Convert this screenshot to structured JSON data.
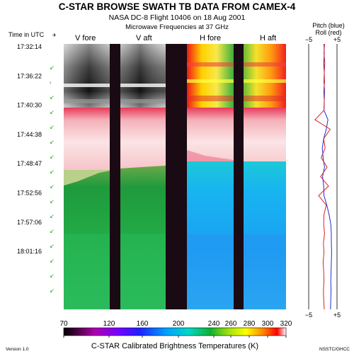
{
  "title": "C-STAR BROWSE SWATH TB DATA FROM CAMEX-4",
  "subtitle": "NASA DC-8 Flight 10406 on 18 Aug 2001",
  "subtitle2": "Microwave Frequencies at 37 GHz",
  "time_axis_label": "Time in UTC",
  "channel_labels": [
    "V fore",
    "V aft",
    "H fore",
    "H aft"
  ],
  "time_ticks": [
    "17:32:14",
    "17:36:22",
    "17:40:30",
    "17:44:38",
    "17:48:47",
    "17:52:56",
    "17:57:06",
    "18:01:16"
  ],
  "attitude_label_line1": "Pitch (blue)",
  "attitude_label_line2": "Roll (red)",
  "attitude_scale_min": "−5",
  "attitude_scale_max": "+5",
  "colorbar_label": "C-STAR Calibrated Brightness Temperatures (K)",
  "colorbar_ticks": [
    "70",
    "120",
    "160",
    "200",
    "240",
    "260",
    "280",
    "300",
    "320"
  ],
  "version": "Version 1.0",
  "credit": "NSSTC/GHCC",
  "colors": {
    "pitch": "#1f2dd6",
    "roll": "#e02020",
    "gap": "#1a0a14"
  },
  "chart_data": {
    "type": "heatmap",
    "x_categories": [
      "V fore",
      "V aft",
      "H fore",
      "H aft"
    ],
    "y_time_ticks": [
      "17:32:14",
      "17:36:22",
      "17:40:30",
      "17:44:38",
      "17:48:47",
      "17:52:56",
      "17:57:06",
      "18:01:16"
    ],
    "colorbar": {
      "label": "C-STAR Calibrated Brightness Temperatures (K)",
      "ticks": [
        70,
        120,
        160,
        200,
        240,
        260,
        280,
        300,
        320
      ],
      "range": [
        70,
        320
      ]
    },
    "attitude": {
      "xlim": [
        -5,
        5
      ],
      "pitch": [
        0.4,
        0.5,
        0.3,
        0.5,
        0.4,
        0.6,
        0.5,
        0.4,
        1.8,
        1.2,
        0.3,
        -0.2,
        0.1,
        0.6,
        -0.1,
        0.3,
        0.4,
        1.4,
        2.2,
        2.8,
        3.0,
        3.0,
        3.1,
        3.0,
        2.9,
        2.8,
        2.9,
        2.8,
        2.7
      ],
      "roll": [
        0.6,
        0.4,
        0.7,
        0.5,
        0.6,
        0.3,
        0.5,
        0.4,
        -2.8,
        2.6,
        0.3,
        0.8,
        -0.6,
        1.5,
        -0.8,
        2.0,
        -1.5,
        1.2,
        0.4,
        0.3,
        0.6,
        0.2,
        0.4,
        0.1,
        0.3,
        0.4,
        0.2,
        0.3,
        0.5
      ]
    }
  }
}
